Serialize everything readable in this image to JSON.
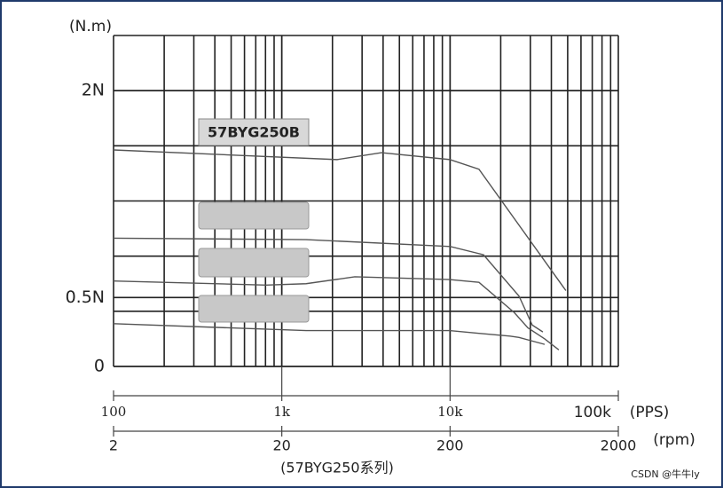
{
  "chart_data": {
    "type": "line",
    "y_label": "(N.m)",
    "x_label": "(PPS)",
    "x2_label": "(rpm)",
    "caption": "(57BYG250系列)",
    "curve_label": "57BYG250B",
    "watermark": "CSDN @牛牛ly",
    "log_x": true,
    "grid": true,
    "xlim": [
      100,
      100000
    ],
    "xticks": [
      100,
      {
        "value": 1000,
        "label": "1k"
      },
      {
        "value": 10000,
        "label": "10k"
      },
      {
        "value": 100000,
        "label": "100k"
      }
    ],
    "x2lim": [
      2,
      2000
    ],
    "x2ticks": [
      2,
      20,
      200,
      2000
    ],
    "ylim": [
      0,
      2.4
    ],
    "yticks": [
      0,
      {
        "value": 0.5,
        "label": "0.5N"
      },
      {
        "value": 2,
        "label": "2N"
      }
    ],
    "series": [
      {
        "color": "#555555",
        "x": [
          100,
          2130,
          3910,
          10000,
          14850,
          48800
        ],
        "values": [
          1.57,
          1.5,
          1.55,
          1.5,
          1.43,
          0.55
        ]
      },
      {
        "color": "#555555",
        "x": [
          100,
          1393,
          10000,
          15800,
          25700,
          30800,
          35600
        ],
        "values": [
          0.93,
          0.92,
          0.87,
          0.81,
          0.51,
          0.3,
          0.25
        ]
      },
      {
        "color": "#555555",
        "x": [
          100,
          807,
          1393,
          2716,
          10000,
          14850,
          24100,
          29000,
          36500,
          44300
        ],
        "values": [
          0.62,
          0.59,
          0.6,
          0.65,
          0.63,
          0.61,
          0.39,
          0.28,
          0.2,
          0.12
        ]
      },
      {
        "color": "#555555",
        "x": [
          100,
          1393,
          10000,
          14850,
          22700,
          25700,
          36500
        ],
        "values": [
          0.31,
          0.26,
          0.26,
          0.24,
          0.22,
          0.21,
          0.16
        ]
      }
    ]
  }
}
